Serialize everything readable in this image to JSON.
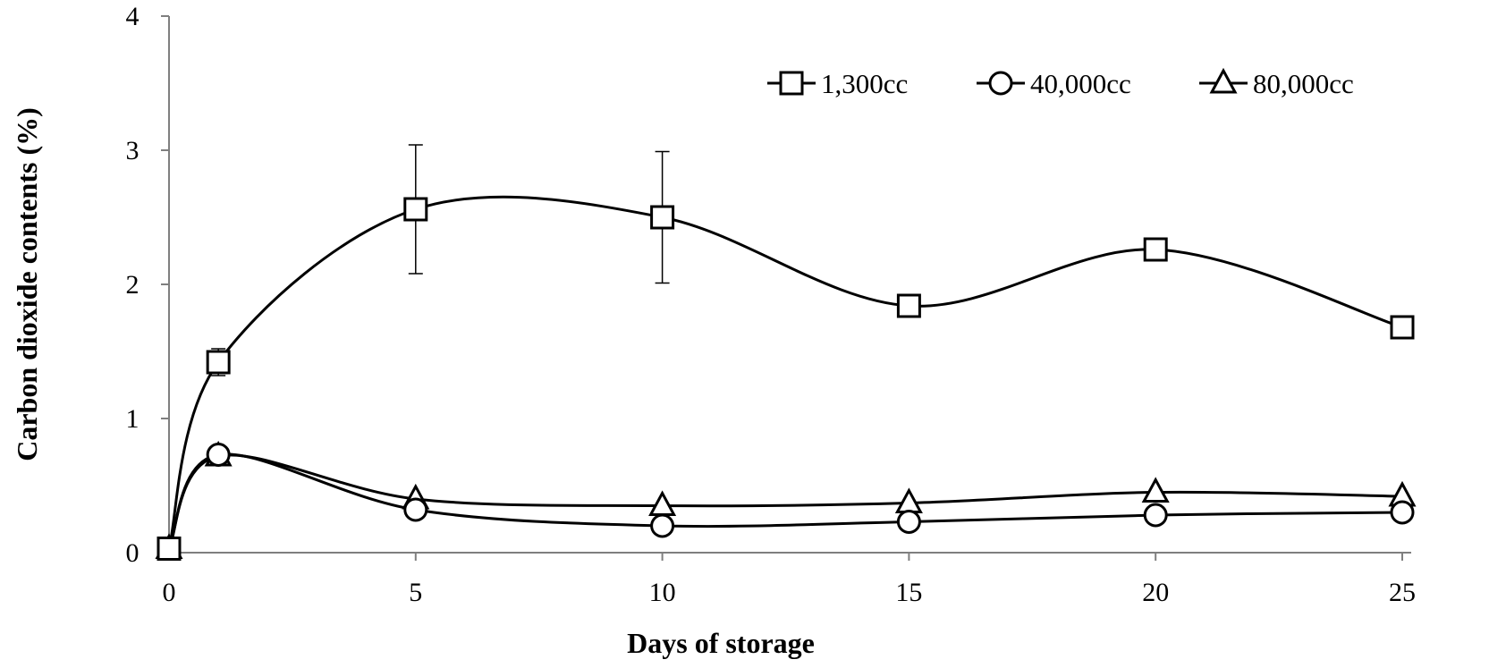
{
  "chart_data": {
    "type": "line",
    "xlabel": "Days of storage",
    "ylabel": "Carbon dioxide contents (%)",
    "xlim": [
      0,
      25
    ],
    "ylim": [
      0,
      4
    ],
    "x_ticks": [
      "0",
      "5",
      "10",
      "15",
      "20",
      "25"
    ],
    "y_ticks": [
      "0",
      "1",
      "2",
      "3",
      "4"
    ],
    "grid": false,
    "legend_position": "top-right",
    "smoothed": true,
    "x": [
      0,
      1,
      5,
      10,
      15,
      20,
      25
    ],
    "series": [
      {
        "name": "1,300cc",
        "marker": "square",
        "values": [
          0.03,
          1.42,
          2.56,
          2.5,
          1.84,
          2.26,
          1.68
        ],
        "error": [
          0,
          0.1,
          0.48,
          0.49,
          0.03,
          0.03,
          0.03
        ]
      },
      {
        "name": "40,000cc",
        "marker": "circle",
        "values": [
          0.03,
          0.73,
          0.32,
          0.2,
          0.23,
          0.28,
          0.3
        ],
        "error": [
          0,
          0,
          0,
          0,
          0,
          0,
          0
        ]
      },
      {
        "name": "80,000cc",
        "marker": "triangle",
        "values": [
          0.03,
          0.72,
          0.4,
          0.35,
          0.37,
          0.45,
          0.42
        ],
        "error": [
          0,
          0,
          0,
          0,
          0,
          0,
          0
        ]
      }
    ],
    "colors": {
      "line": "#000000",
      "axis": "#7f7f7f",
      "marker_fill": "#ffffff"
    }
  }
}
